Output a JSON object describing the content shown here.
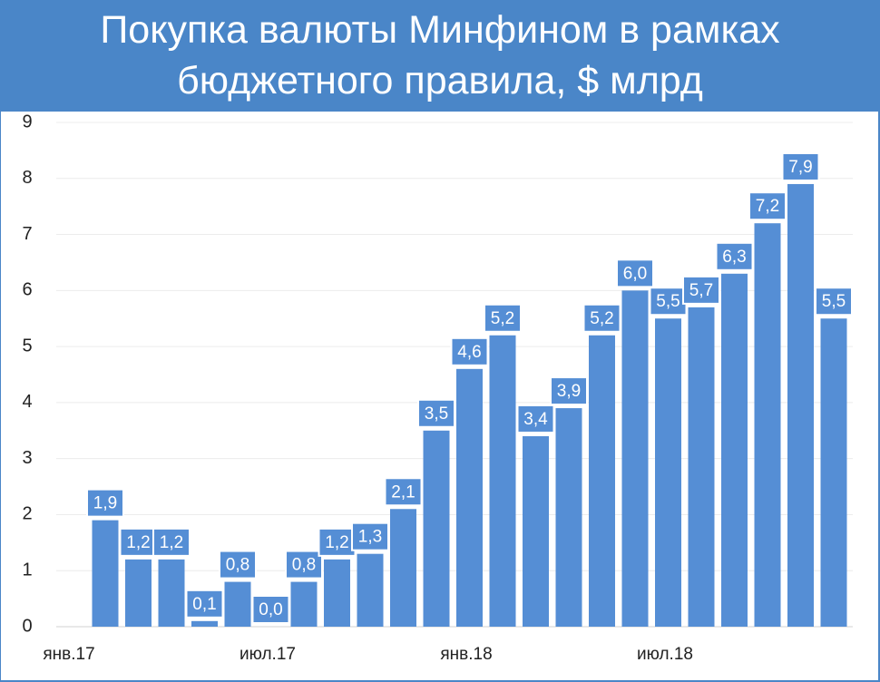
{
  "chart_data": {
    "type": "bar",
    "title": "Покупка валюты Минфином в рамках бюджетного правила, $ млрд",
    "categories": [
      "янв.17",
      null,
      null,
      null,
      null,
      null,
      "июл.17",
      null,
      null,
      null,
      null,
      null,
      "янв.18",
      null,
      null,
      null,
      null,
      null,
      "июл.18",
      null,
      null,
      null,
      null
    ],
    "values": [
      1.9,
      1.2,
      1.2,
      0.1,
      0.8,
      0.0,
      0.8,
      1.2,
      1.3,
      2.1,
      3.5,
      4.6,
      5.2,
      3.4,
      3.9,
      5.2,
      6.0,
      5.5,
      5.7,
      6.3,
      7.2,
      7.9,
      5.5
    ],
    "value_labels": [
      "1,9",
      "1,2",
      "1,2",
      "0,1",
      "0,8",
      "0,0",
      "0,8",
      "1,2",
      "1,3",
      "2,1",
      "3,5",
      "4,6",
      "5,2",
      "3,4",
      "3,9",
      "5,2",
      "6,0",
      "5,5",
      "5,7",
      "6,3",
      "7,2",
      "7,9",
      "5,5"
    ],
    "color": "#558ed5",
    "ylim": [
      0,
      9
    ],
    "yticks": [
      0,
      1,
      2,
      3,
      4,
      5,
      6,
      7,
      8,
      9
    ],
    "grid": true
  }
}
